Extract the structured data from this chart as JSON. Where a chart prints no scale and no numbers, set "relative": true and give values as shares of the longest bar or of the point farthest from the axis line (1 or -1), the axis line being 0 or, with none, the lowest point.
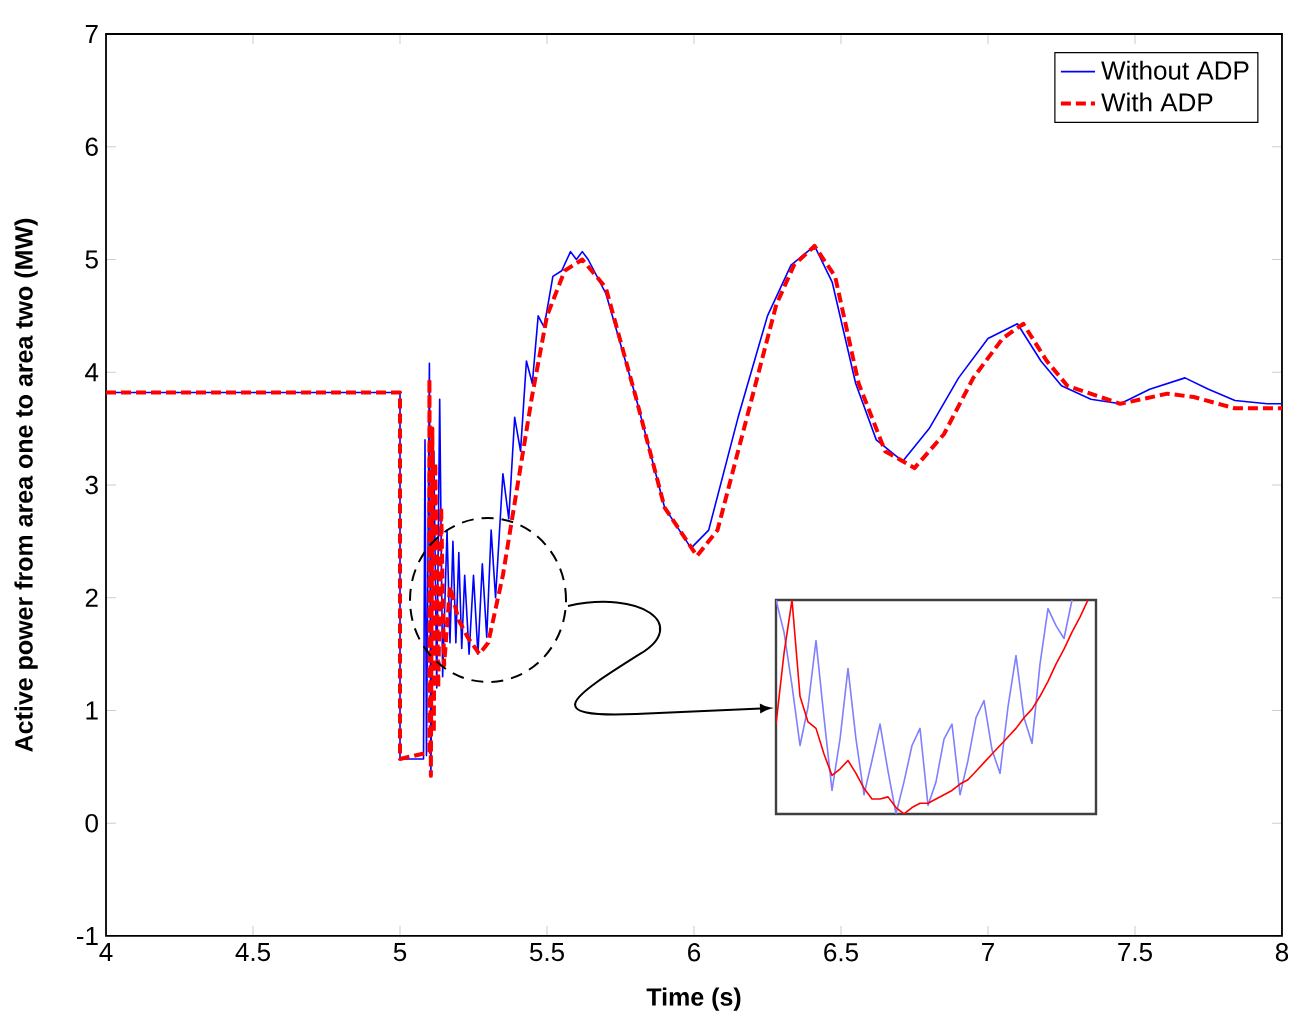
{
  "chart_data": [
    {
      "type": "line",
      "xlabel": "Time (s)",
      "ylabel": "Active power from area one to area two  (MW)",
      "xlim": [
        4,
        8
      ],
      "ylim": [
        -1,
        7
      ],
      "xticks": [
        4,
        4.5,
        5,
        5.5,
        6,
        6.5,
        7,
        7.5,
        8
      ],
      "yticks": [
        -1,
        0,
        1,
        2,
        3,
        4,
        5,
        6,
        7
      ],
      "legend": "top right",
      "grid": false,
      "series": [
        {
          "name": "Without ADP",
          "color": "#0000ff",
          "line_style": "solid",
          "x": [
            4,
            5,
            5,
            5.08,
            5.085,
            5.09,
            5.1,
            5.105,
            5.115,
            5.125,
            5.135,
            5.145,
            5.16,
            5.17,
            5.18,
            5.19,
            5.2,
            5.21,
            5.22,
            5.235,
            5.25,
            5.265,
            5.28,
            5.295,
            5.31,
            5.325,
            5.35,
            5.37,
            5.39,
            5.41,
            5.43,
            5.45,
            5.47,
            5.49,
            5.52,
            5.55,
            5.58,
            5.6,
            5.62,
            5.64,
            5.7,
            5.8,
            5.9,
            5.99,
            6.05,
            6.15,
            6.25,
            6.33,
            6.41,
            6.47,
            6.55,
            6.62,
            6.71,
            6.8,
            6.9,
            7.0,
            7.1,
            7.18,
            7.25,
            7.35,
            7.45,
            7.55,
            7.67,
            7.75,
            7.84,
            7.95,
            8
          ],
          "values": [
            3.82,
            3.82,
            0.57,
            0.57,
            3.4,
            0.6,
            4.08,
            0.42,
            3.3,
            1.2,
            3.76,
            1.3,
            2.6,
            1.6,
            2.5,
            1.6,
            2.4,
            1.55,
            2.2,
            1.5,
            2.2,
            1.5,
            2.3,
            1.65,
            2.6,
            2.0,
            3.1,
            2.7,
            3.6,
            3.3,
            4.1,
            3.9,
            4.5,
            4.4,
            4.85,
            4.9,
            5.07,
            5.0,
            5.07,
            5.0,
            4.7,
            3.8,
            2.8,
            2.44,
            2.6,
            3.6,
            4.5,
            4.95,
            5.12,
            4.8,
            3.9,
            3.4,
            3.21,
            3.5,
            3.95,
            4.3,
            4.43,
            4.1,
            3.88,
            3.76,
            3.72,
            3.85,
            3.95,
            3.85,
            3.75,
            3.72,
            3.72
          ]
        },
        {
          "name": "With ADP",
          "color": "#ff0000",
          "line_style": "dashed",
          "x": [
            4,
            5,
            5,
            5.1,
            5.1,
            5.105,
            5.11,
            5.115,
            5.12,
            5.13,
            5.14,
            5.15,
            5.17,
            5.2,
            5.23,
            5.27,
            5.3,
            5.35,
            5.4,
            5.45,
            5.5,
            5.56,
            5.62,
            5.7,
            5.8,
            5.9,
            6.01,
            6.08,
            6.18,
            6.28,
            6.34,
            6.41,
            6.48,
            6.56,
            6.65,
            6.75,
            6.85,
            6.95,
            7.05,
            7.12,
            7.2,
            7.27,
            7.45,
            7.61,
            7.7,
            7.84,
            8
          ],
          "values": [
            3.82,
            3.82,
            0.57,
            0.63,
            3.94,
            0.42,
            3.5,
            0.8,
            3.2,
            1.2,
            2.8,
            1.4,
            2.1,
            1.8,
            1.65,
            1.5,
            1.6,
            2.2,
            3.0,
            3.8,
            4.5,
            4.9,
            5.0,
            4.75,
            3.8,
            2.8,
            2.37,
            2.6,
            3.6,
            4.6,
            4.95,
            5.12,
            4.85,
            3.9,
            3.3,
            3.15,
            3.45,
            3.95,
            4.3,
            4.43,
            4.1,
            3.88,
            3.72,
            3.81,
            3.78,
            3.68,
            3.68
          ]
        }
      ]
    },
    {
      "type": "line",
      "relative": true,
      "categories": [
        null,
        null,
        null,
        null,
        null,
        null,
        null,
        null,
        null,
        null,
        null,
        null,
        null,
        null,
        null,
        null,
        null,
        null,
        null,
        null,
        null,
        null,
        null,
        null,
        null,
        null,
        null,
        null,
        null,
        null,
        null,
        null,
        null,
        null,
        null,
        null,
        null,
        null,
        null,
        null
      ],
      "series": [
        {
          "color": "#7f7fff",
          "line_style": "solid",
          "values": [
            1.0,
            0.85,
            0.6,
            0.32,
            0.5,
            0.81,
            0.45,
            0.11,
            0.35,
            0.68,
            0.35,
            0.09,
            0.25,
            0.42,
            0.2,
            0,
            0.15,
            0.32,
            0.4,
            0.04,
            0.15,
            0.35,
            0.42,
            0.09,
            0.25,
            0.45,
            0.53,
            0.3,
            0.19,
            0.5,
            0.74,
            0.45,
            0.33,
            0.7,
            0.96,
            0.88,
            0.82,
            1.0,
            null,
            null
          ]
        },
        {
          "color": "#ff0000",
          "line_style": "solid",
          "values": [
            0.42,
            0.75,
            1.0,
            0.55,
            0.43,
            0.4,
            0.28,
            0.18,
            0.21,
            0.25,
            0.19,
            0.12,
            0.07,
            0.07,
            0.08,
            0.03,
            0,
            0.03,
            0.05,
            0.05,
            0.07,
            0.09,
            0.11,
            0.14,
            0.16,
            0.2,
            0.24,
            0.28,
            0.32,
            0.36,
            0.4,
            0.45,
            0.49,
            0.55,
            0.62,
            0.7,
            0.77,
            0.85,
            0.92,
            1.0
          ]
        }
      ]
    }
  ]
}
